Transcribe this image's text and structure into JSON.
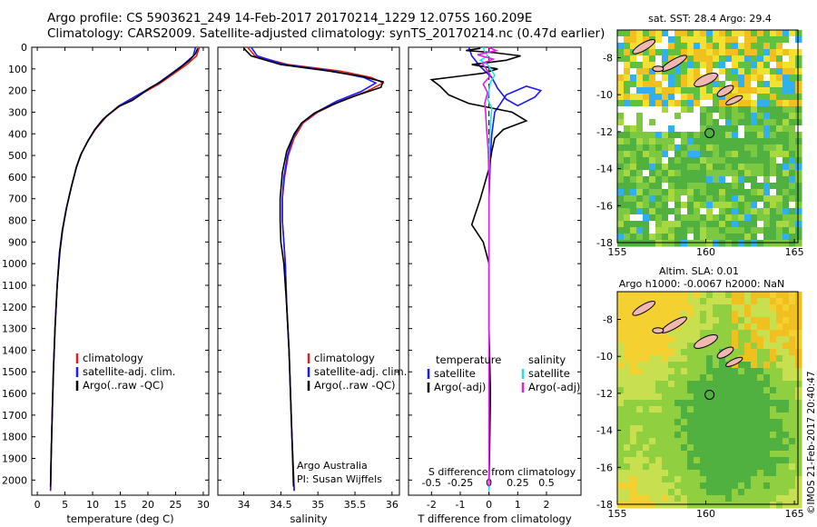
{
  "header": {
    "line1": "Argo profile: CS 5903621_249 14-Feb-2017 20170214_1229 12.075S 160.209E",
    "line2": "Climatology: CARS2009. Satellite-adjusted climatology: synTS_20170214.nc (0.47d earlier)"
  },
  "colors": {
    "climatology": "#e02020",
    "satellite": "#1a1aff",
    "argo": "#000000",
    "satellite_s": "#22e0f0",
    "argo_s": "#e020e0"
  },
  "chart_data": [
    {
      "type": "line",
      "name": "temperature-profile",
      "xlabel": "temperature (deg C)",
      "xlim": [
        -1,
        31
      ],
      "xticks": [
        0,
        5,
        10,
        15,
        20,
        25,
        30
      ],
      "ylim": [
        0,
        2070
      ],
      "yticks": [
        0,
        100,
        200,
        300,
        400,
        500,
        600,
        700,
        800,
        900,
        1000,
        1100,
        1200,
        1300,
        1400,
        1500,
        1600,
        1700,
        1800,
        1900,
        2000
      ],
      "legend": [
        "climatology",
        "satellite-adj. clim.",
        "Argo(..raw -QC)"
      ],
      "series": [
        {
          "name": "climatology",
          "points": [
            [
              29.3,
              0
            ],
            [
              28.8,
              40
            ],
            [
              27.0,
              80
            ],
            [
              24.8,
              120
            ],
            [
              22.0,
              170
            ],
            [
              18.5,
              220
            ],
            [
              15.0,
              270
            ],
            [
              12.5,
              320
            ],
            [
              10.5,
              380
            ],
            [
              9.0,
              440
            ],
            [
              7.8,
              500
            ],
            [
              7.0,
              560
            ],
            [
              6.1,
              650
            ],
            [
              5.2,
              750
            ],
            [
              4.5,
              850
            ],
            [
              4.0,
              950
            ],
            [
              3.6,
              1100
            ],
            [
              3.2,
              1300
            ],
            [
              2.9,
              1500
            ],
            [
              2.7,
              1700
            ],
            [
              2.5,
              1900
            ],
            [
              2.4,
              2050
            ]
          ]
        },
        {
          "name": "satellite-adj. clim.",
          "points": [
            [
              28.6,
              0
            ],
            [
              28.2,
              40
            ],
            [
              26.4,
              80
            ],
            [
              24.3,
              120
            ],
            [
              21.6,
              170
            ],
            [
              18.2,
              220
            ],
            [
              14.8,
              270
            ],
            [
              12.4,
              320
            ],
            [
              10.4,
              380
            ],
            [
              9.0,
              440
            ],
            [
              7.8,
              500
            ],
            [
              7.0,
              560
            ],
            [
              6.1,
              650
            ],
            [
              5.2,
              750
            ],
            [
              4.5,
              850
            ],
            [
              4.0,
              950
            ],
            [
              3.6,
              1100
            ],
            [
              3.2,
              1300
            ],
            [
              2.9,
              1500
            ],
            [
              2.7,
              1700
            ],
            [
              2.5,
              1900
            ],
            [
              2.4,
              2050
            ]
          ]
        },
        {
          "name": "Argo(..raw -QC)",
          "points": [
            [
              29.0,
              5
            ],
            [
              28.6,
              30
            ],
            [
              27.5,
              60
            ],
            [
              25.8,
              95
            ],
            [
              23.9,
              130
            ],
            [
              22.3,
              160
            ],
            [
              20.2,
              190
            ],
            [
              18.9,
              215
            ],
            [
              17.2,
              245
            ],
            [
              14.6,
              275
            ],
            [
              13.2,
              305
            ],
            [
              11.8,
              335
            ],
            [
              10.4,
              380
            ],
            [
              9.2,
              430
            ],
            [
              8.0,
              490
            ],
            [
              7.1,
              550
            ],
            [
              6.2,
              640
            ],
            [
              5.3,
              740
            ],
            [
              4.6,
              840
            ],
            [
              4.1,
              940
            ],
            [
              3.6,
              1100
            ],
            [
              3.2,
              1300
            ],
            [
              2.9,
              1500
            ],
            [
              2.7,
              1700
            ],
            [
              2.5,
              1900
            ],
            [
              2.4,
              2030
            ]
          ]
        }
      ]
    },
    {
      "type": "line",
      "name": "salinity-profile",
      "xlabel": "salinity",
      "xlim": [
        33.65,
        36.1
      ],
      "xticks": [
        34,
        34.5,
        35,
        35.5,
        36
      ],
      "ylim": [
        0,
        2070
      ],
      "legend": [
        "climatology",
        "satellite-adj. clim.",
        "Argo(..raw -QC)"
      ],
      "annotation": [
        "Argo Australia",
        "PI: Susan Wijffels"
      ],
      "series": [
        {
          "name": "climatology",
          "points": [
            [
              34.05,
              0
            ],
            [
              34.15,
              40
            ],
            [
              34.6,
              80
            ],
            [
              35.3,
              110
            ],
            [
              35.72,
              140
            ],
            [
              35.88,
              165
            ],
            [
              35.65,
              205
            ],
            [
              35.3,
              250
            ],
            [
              35.0,
              300
            ],
            [
              34.8,
              350
            ],
            [
              34.68,
              420
            ],
            [
              34.6,
              500
            ],
            [
              34.55,
              600
            ],
            [
              34.52,
              700
            ],
            [
              34.52,
              800
            ],
            [
              34.54,
              900
            ],
            [
              34.56,
              1000
            ],
            [
              34.58,
              1200
            ],
            [
              34.61,
              1400
            ],
            [
              34.63,
              1600
            ],
            [
              34.65,
              1800
            ],
            [
              34.68,
              2050
            ]
          ]
        },
        {
          "name": "satellite-adj. clim.",
          "points": [
            [
              34.1,
              0
            ],
            [
              34.18,
              40
            ],
            [
              34.55,
              80
            ],
            [
              35.2,
              110
            ],
            [
              35.62,
              140
            ],
            [
              35.78,
              165
            ],
            [
              35.58,
              205
            ],
            [
              35.25,
              250
            ],
            [
              34.98,
              300
            ],
            [
              34.78,
              350
            ],
            [
              34.66,
              420
            ],
            [
              34.59,
              500
            ],
            [
              34.54,
              600
            ],
            [
              34.52,
              700
            ],
            [
              34.52,
              800
            ],
            [
              34.54,
              900
            ],
            [
              34.56,
              1000
            ],
            [
              34.58,
              1200
            ],
            [
              34.61,
              1400
            ],
            [
              34.63,
              1600
            ],
            [
              34.65,
              1800
            ],
            [
              34.68,
              2050
            ]
          ]
        },
        {
          "name": "Argo(..raw -QC)",
          "points": [
            [
              34.0,
              5
            ],
            [
              34.1,
              40
            ],
            [
              34.5,
              80
            ],
            [
              35.15,
              110
            ],
            [
              35.6,
              135
            ],
            [
              35.88,
              160
            ],
            [
              35.85,
              185
            ],
            [
              35.5,
              225
            ],
            [
              35.2,
              265
            ],
            [
              34.95,
              305
            ],
            [
              34.78,
              350
            ],
            [
              34.68,
              400
            ],
            [
              34.58,
              480
            ],
            [
              34.52,
              580
            ],
            [
              34.49,
              700
            ],
            [
              34.49,
              800
            ],
            [
              34.5,
              900
            ],
            [
              34.54,
              1000
            ],
            [
              34.58,
              1200
            ],
            [
              34.61,
              1400
            ],
            [
              34.63,
              1600
            ],
            [
              34.65,
              1800
            ],
            [
              34.67,
              2030
            ]
          ]
        }
      ]
    },
    {
      "type": "line",
      "name": "difference-profile",
      "xlabel": "T difference from climatology",
      "xlabel_top": "S difference from climatology",
      "xlim": [
        -2.8,
        3.2
      ],
      "xticks": [
        -2,
        -1,
        0,
        1,
        2
      ],
      "xticks_top": [
        "-0.5",
        "-0.25",
        "0",
        "0.25",
        "0.5"
      ],
      "ylim": [
        0,
        2070
      ],
      "legend_t_title": "temperature",
      "legend_s_title": "salinity",
      "legend": [
        "satellite",
        "Argo(-adj)",
        "satellite",
        "Argo(-adj)"
      ],
      "series": [
        {
          "name": "T satellite",
          "points": [
            [
              -0.7,
              0
            ],
            [
              -0.6,
              40
            ],
            [
              -0.3,
              90
            ],
            [
              0.1,
              140
            ],
            [
              0.3,
              190
            ],
            [
              0.6,
              240
            ],
            [
              1.0,
              270
            ],
            [
              1.6,
              230
            ],
            [
              1.8,
              200
            ],
            [
              1.3,
              180
            ],
            [
              0.6,
              220
            ],
            [
              0.2,
              300
            ],
            [
              0.1,
              400
            ],
            [
              0.05,
              500
            ],
            [
              0,
              700
            ],
            [
              0,
              1000
            ],
            [
              0,
              2050
            ]
          ]
        },
        {
          "name": "T Argo(-adj)",
          "points": [
            [
              -0.3,
              5
            ],
            [
              -0.8,
              15
            ],
            [
              0.2,
              25
            ],
            [
              1.1,
              40
            ],
            [
              0.6,
              60
            ],
            [
              -0.6,
              80
            ],
            [
              0.3,
              100
            ],
            [
              -0.2,
              120
            ],
            [
              -2.0,
              150
            ],
            [
              -1.7,
              180
            ],
            [
              -1.4,
              220
            ],
            [
              -0.7,
              260
            ],
            [
              0.8,
              300
            ],
            [
              1.3,
              340
            ],
            [
              0.5,
              380
            ],
            [
              0.2,
              420
            ],
            [
              0.1,
              480
            ],
            [
              0,
              560
            ],
            [
              -0.3,
              700
            ],
            [
              -0.6,
              820
            ],
            [
              -0.2,
              900
            ],
            [
              0,
              1000
            ],
            [
              0,
              1300
            ],
            [
              0.05,
              1600
            ],
            [
              0,
              2030
            ]
          ]
        },
        {
          "name": "S satellite",
          "points": [
            [
              -0.2,
              0
            ],
            [
              -0.15,
              20
            ],
            [
              -0.05,
              40
            ],
            [
              -0.3,
              60
            ],
            [
              -0.05,
              80
            ],
            [
              0.05,
              100
            ],
            [
              0.2,
              130
            ],
            [
              0.05,
              160
            ],
            [
              0,
              200
            ],
            [
              -0.05,
              240
            ],
            [
              0.1,
              280
            ],
            [
              0.05,
              350
            ],
            [
              0.02,
              450
            ],
            [
              0,
              600
            ],
            [
              0,
              2050
            ]
          ]
        },
        {
          "name": "S Argo(-adj)",
          "points": [
            [
              -0.02,
              0
            ],
            [
              0.25,
              15
            ],
            [
              -0.4,
              35
            ],
            [
              0.15,
              55
            ],
            [
              -0.25,
              75
            ],
            [
              -0.12,
              95
            ],
            [
              0.05,
              130
            ],
            [
              -0.2,
              170
            ],
            [
              -0.05,
              210
            ],
            [
              -0.15,
              260
            ],
            [
              -0.12,
              300
            ],
            [
              -0.08,
              380
            ],
            [
              -0.03,
              470
            ],
            [
              0,
              600
            ],
            [
              0,
              2030
            ]
          ]
        }
      ]
    },
    {
      "type": "heatmap",
      "name": "sst-map",
      "title": "sat. SST: 28.4 Argo: 29.4",
      "xlim": [
        155,
        165.2
      ],
      "ylim": [
        -18,
        -6.5
      ],
      "xticks": [
        155,
        160,
        165
      ],
      "yticks": [
        -8,
        -10,
        -12,
        -14,
        -16,
        -18
      ],
      "argo_position": [
        160.209,
        -12.075
      ]
    },
    {
      "type": "heatmap",
      "name": "sla-map",
      "title": "Altim. SLA: 0.01",
      "subtitle": "Argo h1000: -0.0067 h2000: NaN",
      "xlim": [
        155,
        165.2
      ],
      "ylim": [
        -18,
        -6.5
      ],
      "xticks": [
        155,
        160,
        165
      ],
      "yticks": [
        -8,
        -10,
        -12,
        -14,
        -16,
        -18
      ],
      "argo_position": [
        160.209,
        -12.075
      ]
    }
  ],
  "side_credit": "©IMOS 21-Feb-2017 20:40:47"
}
